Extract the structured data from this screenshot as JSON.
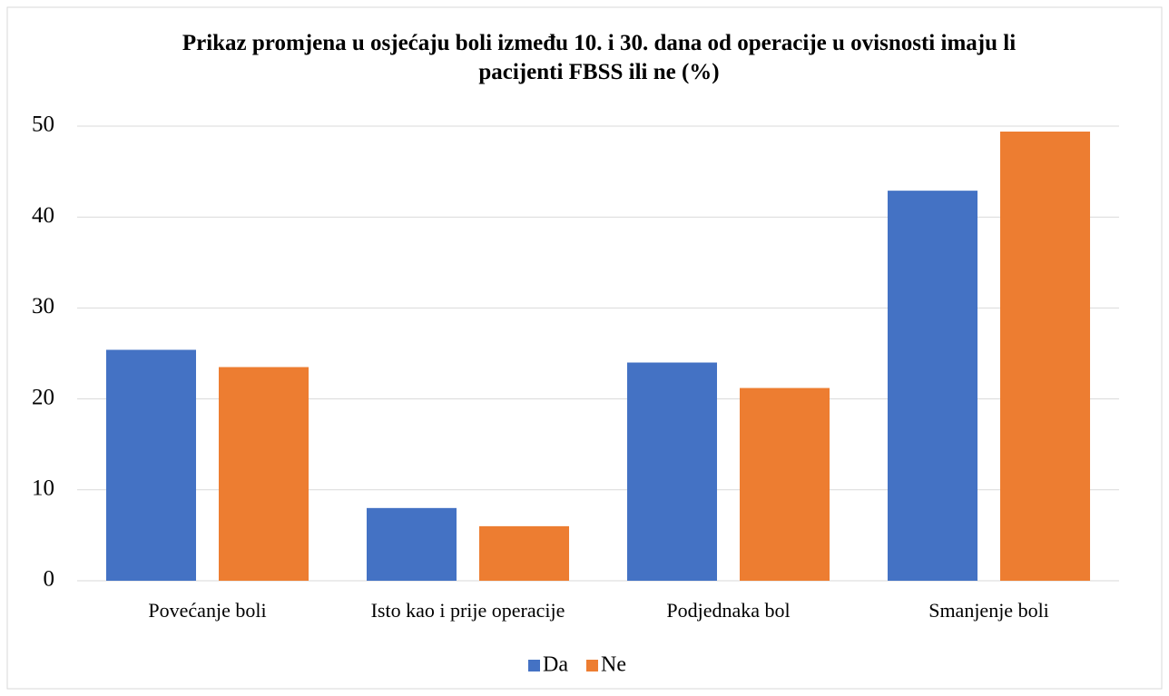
{
  "chart_data": {
    "type": "bar",
    "title": "Prikaz promjena u osjećaju boli između 10. i 30. dana od operacije u ovisnosti imaju li pacijenti FBSS ili ne (%)",
    "categories": [
      "Povećanje boli",
      "Isto kao i prije operacije",
      "Podjednaka bol",
      "Smanjenje boli"
    ],
    "series": [
      {
        "name": "Da",
        "color": "#4472c4",
        "values": [
          25.4,
          8.0,
          24.0,
          42.9
        ]
      },
      {
        "name": "Ne",
        "color": "#ed7d31",
        "values": [
          23.5,
          6.0,
          21.2,
          49.4
        ]
      }
    ],
    "ylim": [
      0,
      50
    ],
    "yticks": [
      0,
      10,
      20,
      30,
      40,
      50
    ],
    "grid": true,
    "legend": "bottom"
  }
}
